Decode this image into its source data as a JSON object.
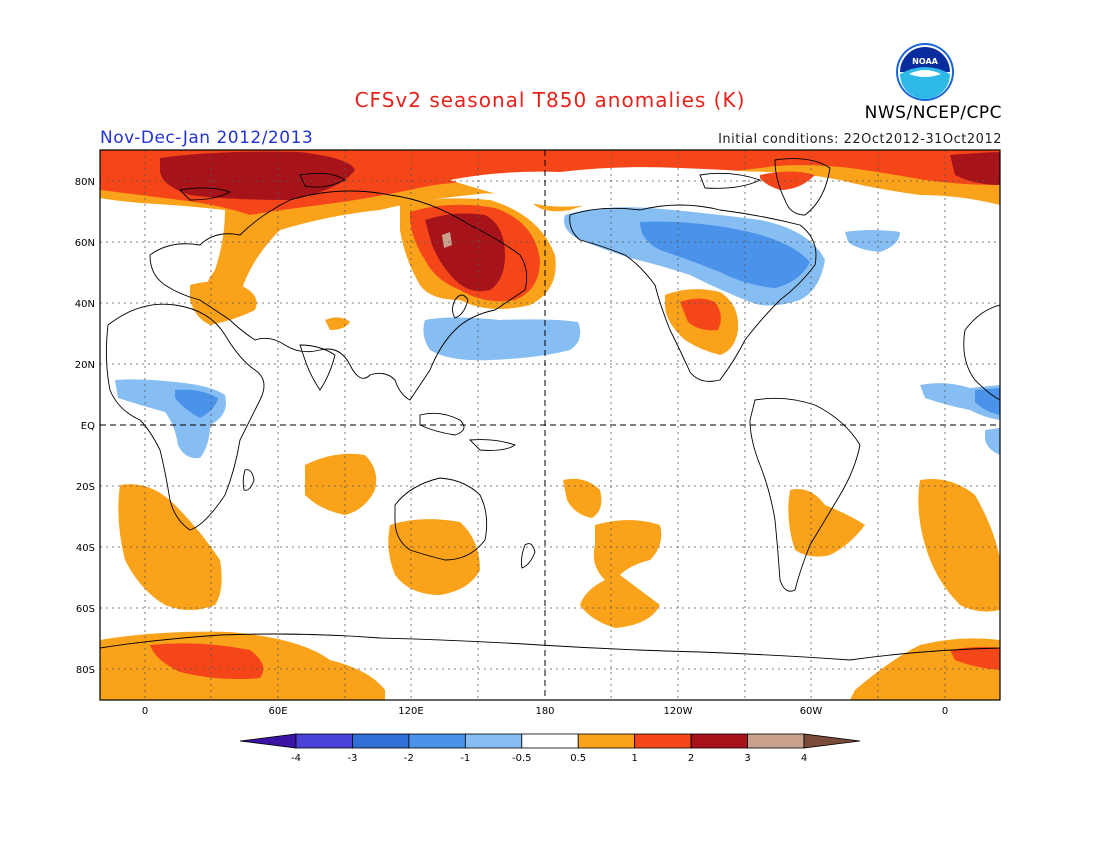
{
  "header": {
    "title": "CFSv2 seasonal T850 anomalies (K)",
    "period": "Nov-Dec-Jan 2012/2013",
    "agency": "NWS/NCEP/CPC",
    "initial_conditions": "Initial conditions: 22Oct2012-31Oct2012",
    "logo_text": "NOAA"
  },
  "map": {
    "lat_labels": [
      "80N",
      "60N",
      "40N",
      "20N",
      "EQ",
      "20S",
      "40S",
      "60S",
      "80S"
    ],
    "lon_labels": [
      "0",
      "60E",
      "120E",
      "180",
      "120W",
      "60W",
      "0"
    ],
    "lat_values": [
      80,
      60,
      40,
      20,
      0,
      -20,
      -40,
      -60,
      -80
    ],
    "lon_values": [
      0,
      60,
      120,
      180,
      240,
      300,
      360
    ]
  },
  "colorbar": {
    "labels": [
      "-4",
      "-3",
      "-2",
      "-1",
      "-0.5",
      "0.5",
      "1",
      "2",
      "3",
      "4"
    ],
    "colors": [
      "#3b14a6",
      "#4a42d8",
      "#2f6fd6",
      "#4a92ea",
      "#86bdf2",
      "#ffffff",
      "#f9a21a",
      "#f5461a",
      "#a6141a",
      "#c8a08c",
      "#7a4a3a"
    ]
  },
  "colors": {
    "title": "#e8221a",
    "period": "#2233d6",
    "warm1": "#f9a21a",
    "warm2": "#f5461a",
    "warm3": "#a6141a",
    "cool1": "#86bdf2",
    "cool2": "#4a92ea"
  }
}
